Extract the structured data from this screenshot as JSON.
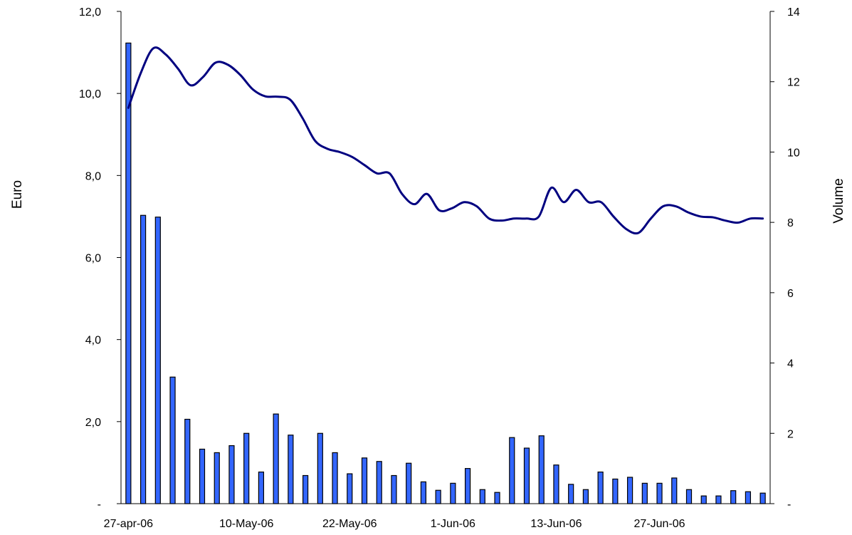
{
  "chart_data": {
    "type": "bar+line",
    "title": "",
    "left_axis": {
      "label": "Euro",
      "ylim": [
        0,
        12
      ],
      "ticks": [
        0,
        2,
        4,
        6,
        8,
        10,
        12
      ],
      "tick_labels": [
        "-",
        "2,0",
        "4,0",
        "6,0",
        "8,0",
        "10,0",
        "12,0"
      ]
    },
    "right_axis": {
      "label": "Volume",
      "ylim": [
        0,
        14
      ],
      "ticks": [
        0,
        2,
        4,
        6,
        8,
        10,
        12,
        14
      ],
      "tick_labels": [
        "-",
        "2",
        "4",
        "6",
        "8",
        "10",
        "12",
        "14"
      ]
    },
    "x_axis": {
      "tick_labels": [
        "27-apr-06",
        "10-May-06",
        "22-May-06",
        "1-Jun-06",
        "13-Jun-06",
        "27-Jun-06"
      ],
      "tick_bar_index": [
        0,
        8,
        15,
        22,
        29,
        36
      ]
    },
    "line_series": {
      "axis": "left",
      "color": "#000080",
      "values": [
        9.65,
        10.5,
        11.1,
        10.95,
        10.6,
        10.2,
        10.4,
        10.75,
        10.7,
        10.45,
        10.1,
        9.93,
        9.92,
        9.85,
        9.4,
        8.85,
        8.65,
        8.57,
        8.45,
        8.25,
        8.05,
        8.05,
        7.55,
        7.3,
        7.55,
        7.15,
        7.2,
        7.35,
        7.25,
        6.95,
        6.9,
        6.95,
        6.95,
        7.0,
        7.7,
        7.35,
        7.65,
        7.35,
        7.35,
        7.0,
        6.7,
        6.6,
        6.95,
        7.25,
        7.25,
        7.1,
        7.0,
        6.98,
        6.9,
        6.85,
        6.95,
        6.95
      ]
    },
    "bar_series": {
      "axis": "right",
      "color": "#3366FF",
      "values": [
        13.1,
        8.2,
        8.15,
        3.6,
        2.4,
        1.55,
        1.45,
        1.65,
        2.0,
        0.9,
        2.55,
        1.95,
        0.8,
        2.0,
        1.45,
        0.85,
        1.3,
        1.2,
        0.8,
        1.15,
        0.62,
        0.38,
        0.58,
        1.0,
        0.4,
        0.32,
        1.88,
        1.58,
        1.93,
        1.1,
        0.55,
        0.4,
        0.9,
        0.7,
        0.75,
        0.58,
        0.58,
        0.73,
        0.4,
        0.22,
        0.22,
        0.37,
        0.34,
        0.3
      ]
    }
  }
}
